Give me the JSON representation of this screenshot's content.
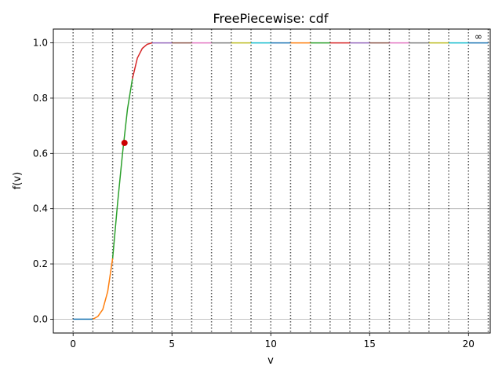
{
  "chart_data": {
    "type": "line",
    "title": "FreePiecewise: cdf",
    "xlabel": "v",
    "ylabel": "f(v)",
    "xlim": [
      -1.0,
      21.1
    ],
    "ylim": [
      -0.05,
      1.05
    ],
    "xticks": [
      0,
      5,
      10,
      15,
      20
    ],
    "yticks": [
      0.0,
      0.2,
      0.4,
      0.6,
      0.8,
      1.0
    ],
    "xtick_labels": [
      "0",
      "5",
      "10",
      "15",
      "20"
    ],
    "ytick_labels": [
      "0.0",
      "0.2",
      "0.4",
      "0.6",
      "0.8",
      "1.0"
    ],
    "grid": "horizontal",
    "breakpoints": [
      0,
      1,
      2,
      3,
      4,
      5,
      6,
      7,
      8,
      9,
      10,
      11,
      12,
      13,
      14,
      15,
      16,
      17,
      18,
      19,
      20,
      21
    ],
    "annotation": {
      "text": "∞",
      "x": 20.5,
      "y": 1.0
    },
    "highlight_point": {
      "x": 2.6,
      "y": 0.638,
      "color": "#cc0000"
    },
    "palette": [
      "#1f77b4",
      "#ff7f0e",
      "#2ca02c",
      "#d62728",
      "#9467bd",
      "#8c564b",
      "#e377c2",
      "#7f7f7f",
      "#bcbd22",
      "#17becf"
    ],
    "series": [
      {
        "x": [
          0,
          0.5,
          1.0
        ],
        "y": [
          0.0,
          0.0,
          0.0
        ]
      },
      {
        "x": [
          1.0,
          1.25,
          1.5,
          1.75,
          2.0
        ],
        "y": [
          0.0,
          0.01,
          0.035,
          0.1,
          0.22
        ]
      },
      {
        "x": [
          2.0,
          2.25,
          2.5,
          2.75,
          3.0
        ],
        "y": [
          0.22,
          0.42,
          0.6,
          0.76,
          0.87
        ]
      },
      {
        "x": [
          3.0,
          3.25,
          3.5,
          3.75,
          4.0
        ],
        "y": [
          0.87,
          0.945,
          0.98,
          0.995,
          1.0
        ]
      },
      {
        "x": [
          4,
          5
        ],
        "y": [
          1.0,
          1.0
        ]
      },
      {
        "x": [
          5,
          6
        ],
        "y": [
          1.0,
          1.0
        ]
      },
      {
        "x": [
          6,
          7
        ],
        "y": [
          1.0,
          1.0
        ]
      },
      {
        "x": [
          7,
          8
        ],
        "y": [
          1.0,
          1.0
        ]
      },
      {
        "x": [
          8,
          9
        ],
        "y": [
          1.0,
          1.0
        ]
      },
      {
        "x": [
          9,
          10
        ],
        "y": [
          1.0,
          1.0
        ]
      },
      {
        "x": [
          10,
          11
        ],
        "y": [
          1.0,
          1.0
        ]
      },
      {
        "x": [
          11,
          12
        ],
        "y": [
          1.0,
          1.0
        ]
      },
      {
        "x": [
          12,
          13
        ],
        "y": [
          1.0,
          1.0
        ]
      },
      {
        "x": [
          13,
          14
        ],
        "y": [
          1.0,
          1.0
        ]
      },
      {
        "x": [
          14,
          15
        ],
        "y": [
          1.0,
          1.0
        ]
      },
      {
        "x": [
          15,
          16
        ],
        "y": [
          1.0,
          1.0
        ]
      },
      {
        "x": [
          16,
          17
        ],
        "y": [
          1.0,
          1.0
        ]
      },
      {
        "x": [
          17,
          18
        ],
        "y": [
          1.0,
          1.0
        ]
      },
      {
        "x": [
          18,
          19
        ],
        "y": [
          1.0,
          1.0
        ]
      },
      {
        "x": [
          19,
          20
        ],
        "y": [
          1.0,
          1.0
        ]
      },
      {
        "x": [
          20,
          21
        ],
        "y": [
          1.0,
          1.0
        ]
      }
    ]
  }
}
